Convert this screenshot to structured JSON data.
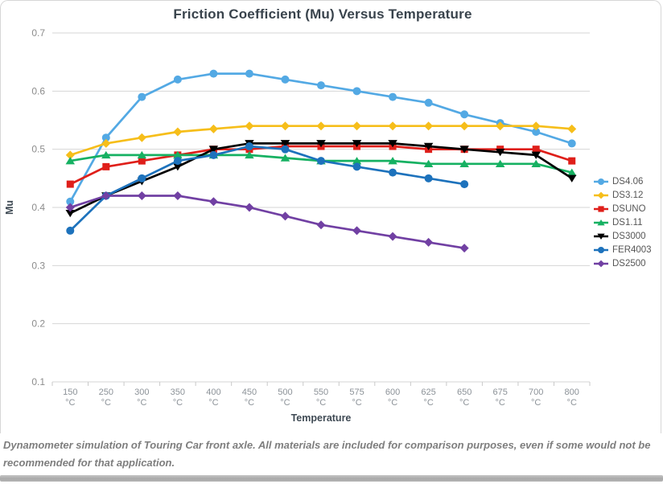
{
  "page": {
    "footer_note": "Dynamometer simulation of Touring Car front axle. All materials are included for comparison purposes, even if some would not be recommended for that application."
  },
  "chart_data": {
    "type": "line",
    "title": "Friction Coefficient (Mu) Versus Temperature",
    "xlabel": "Temperature",
    "ylabel": "Mu",
    "ylim": [
      0.1,
      0.7
    ],
    "ytick_step": 0.1,
    "grid": true,
    "legend_position": "right",
    "category_unit": "°C",
    "categories": [
      "150",
      "250",
      "300",
      "350",
      "400",
      "450",
      "500",
      "550",
      "575",
      "600",
      "625",
      "650",
      "675",
      "700",
      "800"
    ],
    "grid_color": "#d6d6d6",
    "tick_label_color": "#8c9298",
    "axis_title_color": "#3f4a54",
    "series": [
      {
        "name": "DS4.06",
        "color": "#53a9e4",
        "marker": "circle",
        "values": [
          0.41,
          0.52,
          0.59,
          0.62,
          0.63,
          0.63,
          0.62,
          0.61,
          0.6,
          0.59,
          0.58,
          0.56,
          0.545,
          0.53,
          0.51
        ]
      },
      {
        "name": "DS3.12",
        "color": "#f6be1a",
        "marker": "diamond",
        "values": [
          0.49,
          0.51,
          0.52,
          0.53,
          0.535,
          0.54,
          0.54,
          0.54,
          0.54,
          0.54,
          0.54,
          0.54,
          0.54,
          0.54,
          0.535
        ]
      },
      {
        "name": "DSUNO",
        "color": "#df1f1a",
        "marker": "square",
        "values": [
          0.44,
          0.47,
          0.48,
          0.49,
          0.5,
          0.5,
          0.505,
          0.505,
          0.505,
          0.505,
          0.5,
          0.5,
          0.5,
          0.5,
          0.48
        ]
      },
      {
        "name": "DS1.11",
        "color": "#16b162",
        "marker": "triangle-up",
        "values": [
          0.48,
          0.49,
          0.49,
          0.49,
          0.49,
          0.49,
          0.485,
          0.48,
          0.48,
          0.48,
          0.475,
          0.475,
          0.475,
          0.475,
          0.46
        ]
      },
      {
        "name": "DS3000",
        "color": "#000000",
        "marker": "triangle-down",
        "values": [
          0.39,
          0.42,
          0.445,
          0.47,
          0.5,
          0.51,
          0.51,
          0.51,
          0.51,
          0.51,
          0.505,
          0.5,
          0.495,
          0.49,
          0.45
        ]
      },
      {
        "name": "FER4003",
        "color": "#1d72bc",
        "marker": "circle",
        "values": [
          0.36,
          0.42,
          0.45,
          0.48,
          0.49,
          0.505,
          0.5,
          0.48,
          0.47,
          0.46,
          0.45,
          0.44,
          null,
          null,
          null
        ]
      },
      {
        "name": "DS2500",
        "color": "#7140a3",
        "marker": "diamond",
        "values": [
          0.4,
          0.42,
          0.42,
          0.42,
          0.41,
          0.4,
          0.385,
          0.37,
          0.36,
          0.35,
          0.34,
          0.33,
          null,
          null,
          null
        ]
      }
    ]
  }
}
